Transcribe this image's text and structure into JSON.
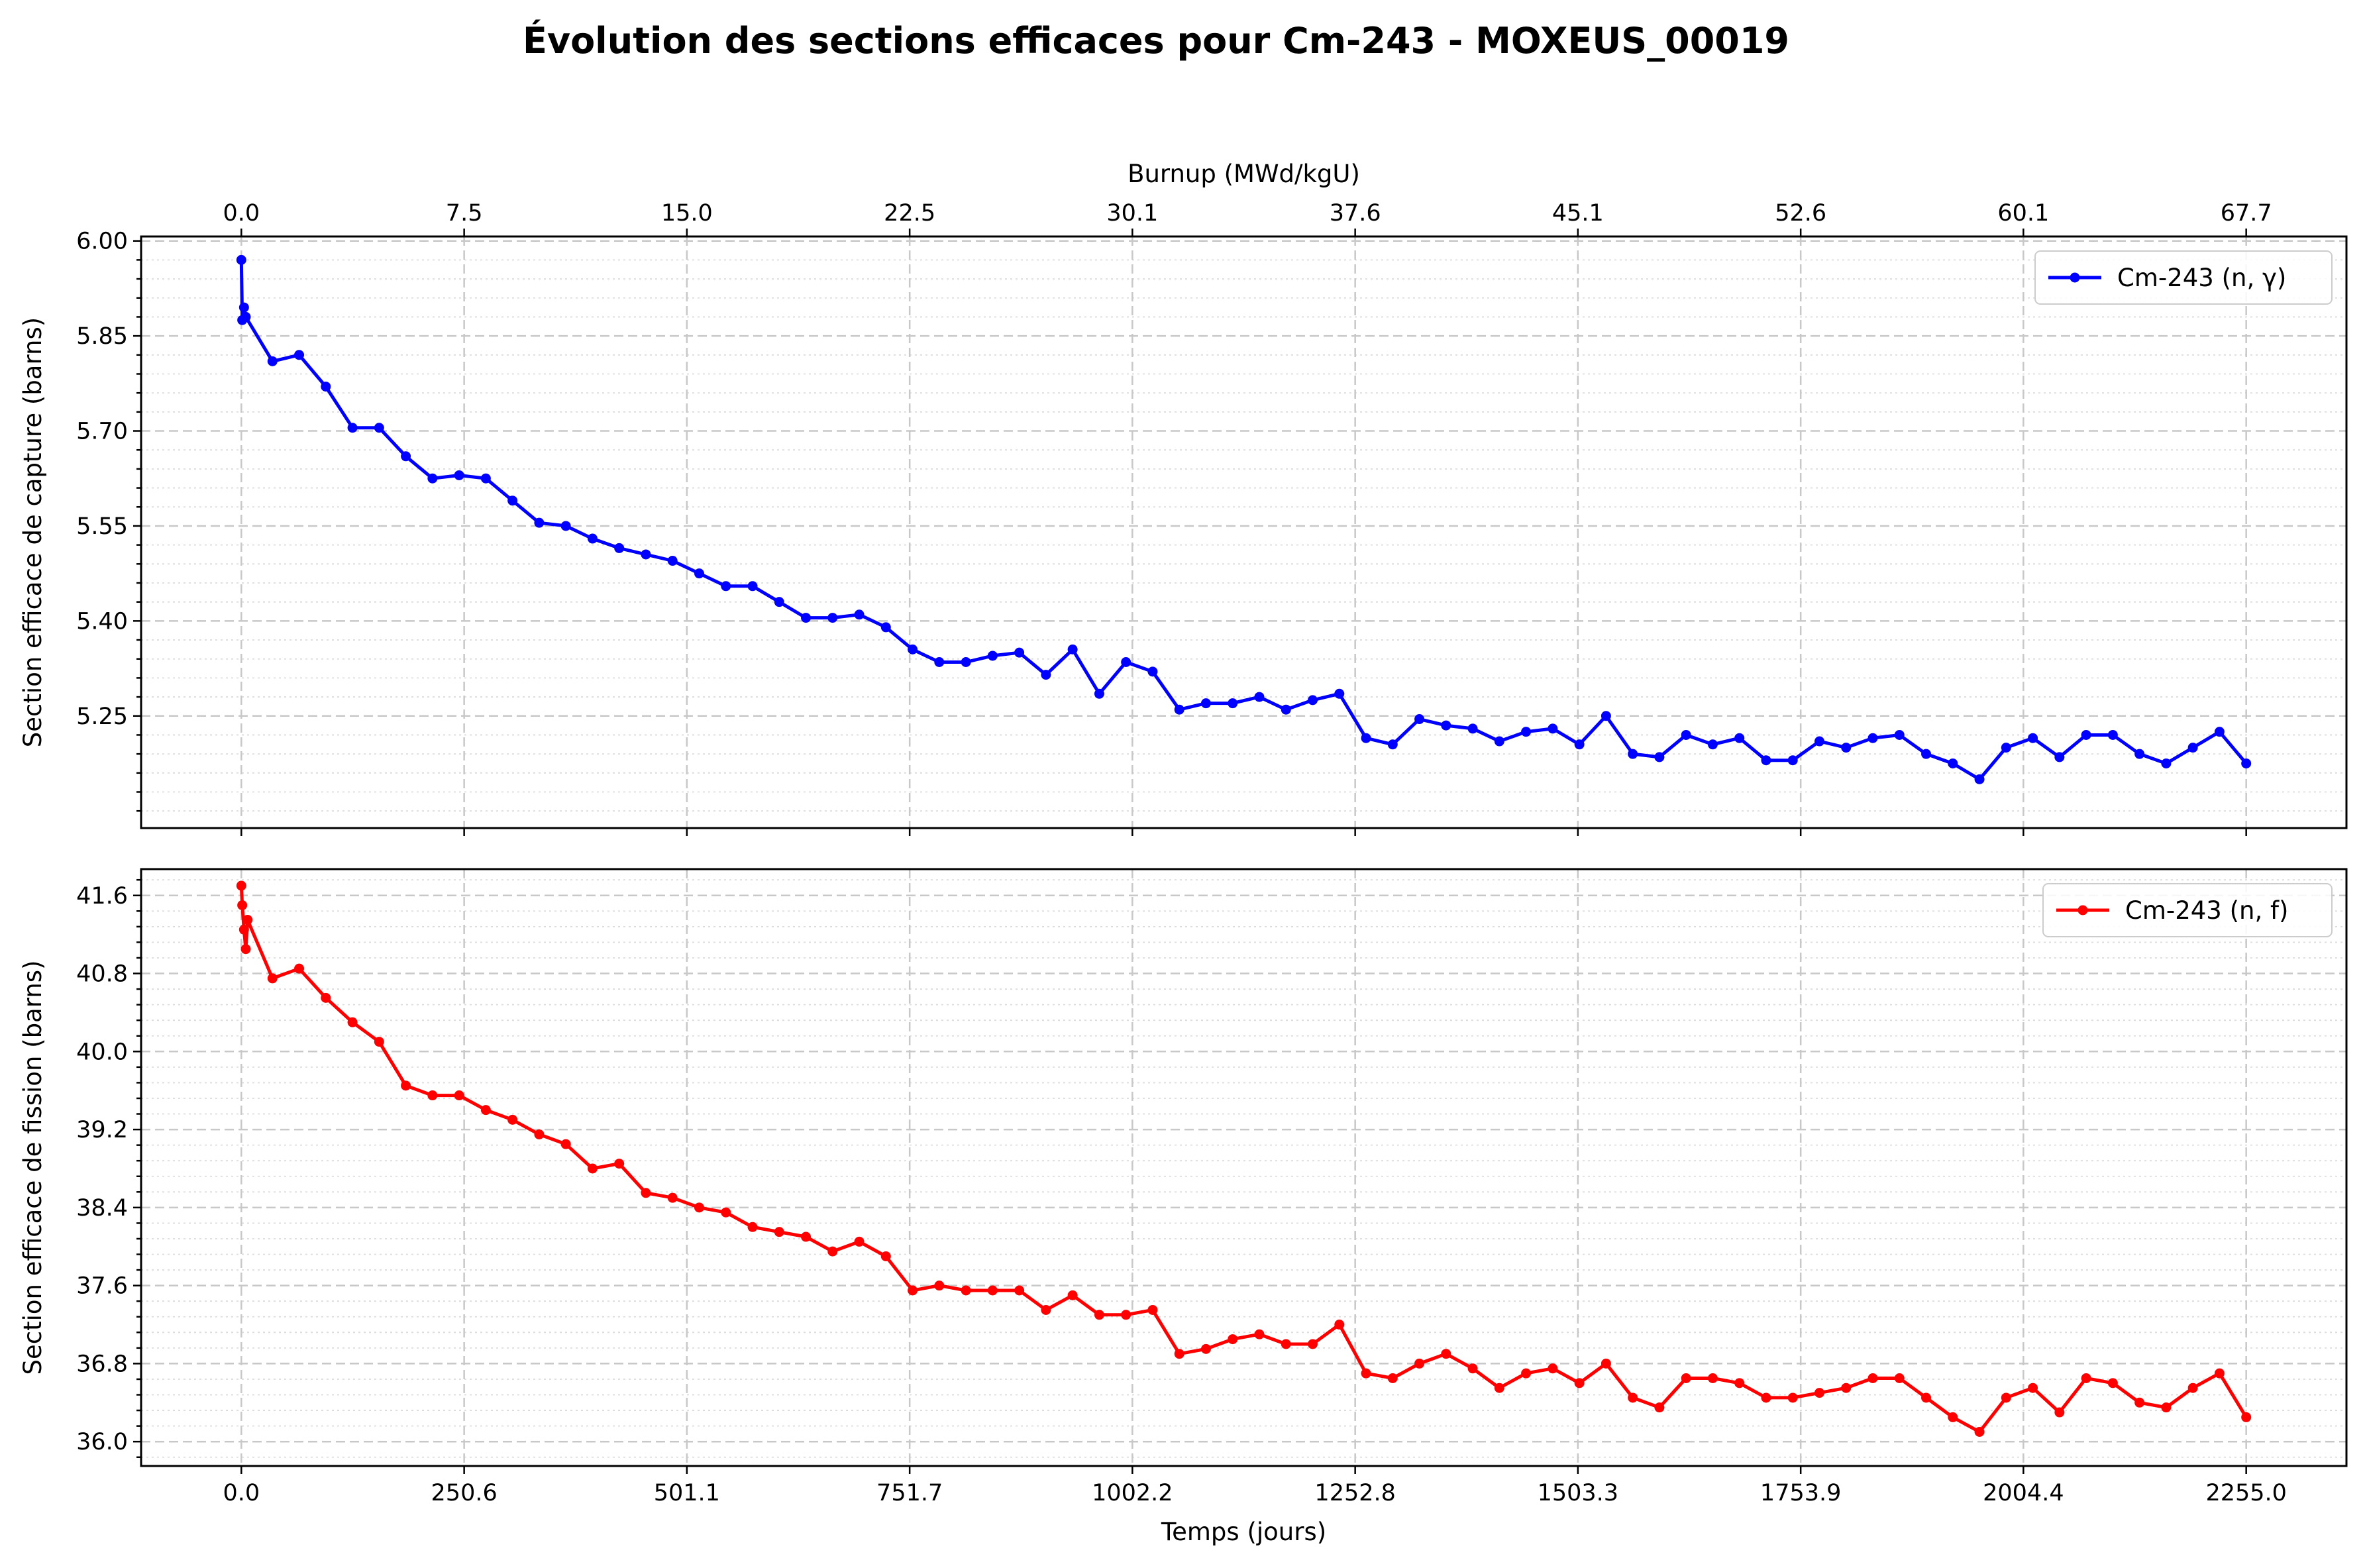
{
  "title": "Évolution des sections efficaces pour Cm-243 - MOXEUS_00019",
  "chart_data": [
    {
      "type": "line",
      "title": "",
      "xlabel": "Temps (jours)",
      "ylabel": "Section efficace de capture (barns)",
      "secondary_xlabel": "Burnup (MWd/kgU)",
      "x_ticks": [
        "0.0",
        "250.6",
        "501.1",
        "751.7",
        "1002.2",
        "1252.8",
        "1503.3",
        "1753.9",
        "2004.4",
        "2255.0"
      ],
      "secondary_x_ticks": [
        "0.0",
        "7.5",
        "15.0",
        "22.5",
        "30.1",
        "37.6",
        "45.1",
        "52.6",
        "60.1",
        "67.7"
      ],
      "y_ticks": [
        "5.25",
        "5.40",
        "5.55",
        "5.70",
        "5.85",
        "6.00"
      ],
      "xlim": [
        -112.75,
        2367.75
      ],
      "ylim": [
        5.073,
        6.007
      ],
      "grid": true,
      "legend_position": "top-right",
      "color": "#0000ff",
      "series": [
        {
          "name": "Cm-243 (n, γ)",
          "x": [
            0,
            1,
            3,
            5,
            35,
            65,
            95,
            125,
            155,
            185,
            215,
            245,
            275,
            305,
            335,
            365,
            395,
            425,
            455,
            485,
            515,
            545,
            575,
            605,
            635,
            665,
            695,
            725,
            755,
            785,
            815,
            845,
            875,
            905,
            935,
            965,
            995,
            1025,
            1055,
            1085,
            1115,
            1145,
            1175,
            1205,
            1235,
            1265,
            1295,
            1325,
            1355,
            1385,
            1415,
            1445,
            1475,
            1505,
            1535,
            1565,
            1595,
            1625,
            1655,
            1685,
            1715,
            1745,
            1775,
            1805,
            1835,
            1865,
            1895,
            1925,
            1955,
            1985,
            2015,
            2045,
            2075,
            2105,
            2135,
            2165,
            2195,
            2225,
            2255
          ],
          "values": [
            5.97,
            5.875,
            5.895,
            5.88,
            5.81,
            5.82,
            5.77,
            5.705,
            5.705,
            5.66,
            5.625,
            5.63,
            5.625,
            5.59,
            5.555,
            5.55,
            5.53,
            5.515,
            5.505,
            5.495,
            5.475,
            5.455,
            5.455,
            5.43,
            5.405,
            5.405,
            5.41,
            5.39,
            5.355,
            5.335,
            5.335,
            5.345,
            5.35,
            5.315,
            5.355,
            5.285,
            5.335,
            5.32,
            5.26,
            5.27,
            5.27,
            5.28,
            5.26,
            5.275,
            5.285,
            5.215,
            5.205,
            5.245,
            5.235,
            5.23,
            5.21,
            5.225,
            5.23,
            5.205,
            5.25,
            5.19,
            5.185,
            5.22,
            5.205,
            5.215,
            5.18,
            5.18,
            5.21,
            5.2,
            5.215,
            5.22,
            5.19,
            5.175,
            5.15,
            5.2,
            5.215,
            5.185,
            5.22,
            5.22,
            5.19,
            5.175,
            5.2,
            5.225,
            5.175
          ]
        }
      ]
    },
    {
      "type": "line",
      "title": "",
      "xlabel": "Temps (jours)",
      "ylabel": "Section efficace de fission (barns)",
      "x_ticks": [
        "0.0",
        "250.6",
        "501.1",
        "751.7",
        "1002.2",
        "1252.8",
        "1503.3",
        "1753.9",
        "2004.4",
        "2255.0"
      ],
      "y_ticks": [
        "36.0",
        "36.8",
        "37.6",
        "38.4",
        "39.2",
        "40.0",
        "40.8",
        "41.6"
      ],
      "xlim": [
        -112.75,
        2367.75
      ],
      "ylim": [
        35.75,
        41.87
      ],
      "grid": true,
      "legend_position": "top-right",
      "color": "#ff0000",
      "series": [
        {
          "name": "Cm-243 (n, f)",
          "x": [
            0,
            1,
            3,
            5,
            7,
            35,
            65,
            95,
            125,
            155,
            185,
            215,
            245,
            275,
            305,
            335,
            365,
            395,
            425,
            455,
            485,
            515,
            545,
            575,
            605,
            635,
            665,
            695,
            725,
            755,
            785,
            815,
            845,
            875,
            905,
            935,
            965,
            995,
            1025,
            1055,
            1085,
            1115,
            1145,
            1175,
            1205,
            1235,
            1265,
            1295,
            1325,
            1355,
            1385,
            1415,
            1445,
            1475,
            1505,
            1535,
            1565,
            1595,
            1625,
            1655,
            1685,
            1715,
            1745,
            1775,
            1805,
            1835,
            1865,
            1895,
            1925,
            1955,
            1985,
            2015,
            2045,
            2075,
            2105,
            2135,
            2165,
            2195,
            2225,
            2255
          ],
          "values": [
            41.7,
            41.5,
            41.25,
            41.05,
            41.35,
            40.75,
            40.85,
            40.55,
            40.3,
            40.1,
            39.65,
            39.55,
            39.55,
            39.4,
            39.3,
            39.15,
            39.05,
            38.8,
            38.85,
            38.55,
            38.5,
            38.4,
            38.35,
            38.2,
            38.15,
            38.1,
            37.95,
            38.05,
            37.9,
            37.55,
            37.6,
            37.55,
            37.55,
            37.55,
            37.35,
            37.5,
            37.3,
            37.3,
            37.35,
            36.9,
            36.95,
            37.05,
            37.1,
            37.0,
            37.0,
            37.2,
            36.7,
            36.65,
            36.8,
            36.9,
            36.75,
            36.55,
            36.7,
            36.75,
            36.6,
            36.8,
            36.45,
            36.35,
            36.65,
            36.65,
            36.6,
            36.45,
            36.45,
            36.5,
            36.55,
            36.65,
            36.65,
            36.45,
            36.25,
            36.1,
            36.45,
            36.55,
            36.3,
            36.65,
            36.6,
            36.4,
            36.35,
            36.55,
            36.7,
            36.25
          ]
        }
      ]
    }
  ]
}
